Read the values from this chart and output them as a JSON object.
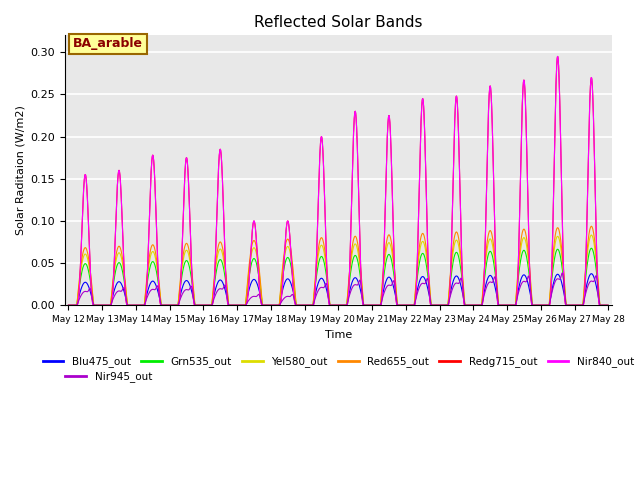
{
  "title": "Reflected Solar Bands",
  "xlabel": "Time",
  "ylabel": "Solar Raditaion (W/m2)",
  "annotation_text": "BA_arable",
  "annotation_color": "#8B0000",
  "annotation_bg": "#FFFF99",
  "annotation_border": "#996600",
  "ylim": [
    0,
    0.32
  ],
  "yticks": [
    0.0,
    0.05,
    0.1,
    0.15,
    0.2,
    0.25,
    0.3
  ],
  "num_days": 16,
  "start_day": 12,
  "series_order": [
    "Blu475_out",
    "Grn535_out",
    "Yel580_out",
    "Red655_out",
    "Redg715_out",
    "Nir840_out",
    "Nir945_out"
  ],
  "series": {
    "Blu475_out": {
      "color": "#0000FF",
      "peak_scale": 0.036,
      "plateau": true
    },
    "Grn535_out": {
      "color": "#00EE00",
      "peak_scale": 0.065,
      "plateau": true
    },
    "Yel580_out": {
      "color": "#DDDD00",
      "peak_scale": 0.08,
      "plateau": true
    },
    "Red655_out": {
      "color": "#FF8800",
      "peak_scale": 0.09,
      "plateau": true
    },
    "Redg715_out": {
      "color": "#FF0000",
      "peak_scale": 0.295,
      "plateau": false
    },
    "Nir840_out": {
      "color": "#FF00FF",
      "peak_scale": 0.295,
      "plateau": false
    },
    "Nir945_out": {
      "color": "#AA00CC",
      "peak_scale": 0.13,
      "plateau": false
    }
  },
  "day_peaks": [
    0.155,
    0.16,
    0.178,
    0.175,
    0.185,
    0.1,
    0.1,
    0.2,
    0.23,
    0.225,
    0.245,
    0.248,
    0.26,
    0.267,
    0.295,
    0.27
  ],
  "background_color": "#E8E8E8",
  "grid_color": "#FFFFFF",
  "figure_bg": "#FFFFFF",
  "legend_order": [
    "Blu475_out",
    "Grn535_out",
    "Yel580_out",
    "Red655_out",
    "Redg715_out",
    "Nir840_out",
    "Nir945_out"
  ]
}
